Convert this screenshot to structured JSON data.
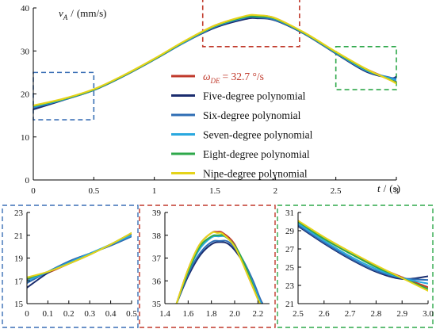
{
  "chart_data": [
    {
      "id": "main",
      "type": "line",
      "ylabel_symbol": "v",
      "ylabel_sub": "A",
      "ylabel_sep": "/",
      "ylabel_unit": "(mm/s)",
      "xlabel_symbol": "t",
      "xlabel_sep": "/",
      "xlabel_unit": "(s)",
      "xlim": [
        0,
        3
      ],
      "ylim": [
        0,
        40
      ],
      "xticks": [
        "0",
        "0.5",
        "1",
        "1.5",
        "2",
        "2.5",
        "3"
      ],
      "yticks": [
        "0",
        "10",
        "20",
        "30",
        "40"
      ],
      "legend_position": "center",
      "series": [
        {
          "name": "ω_DE = 32.7 °/s",
          "color": "#c0392b",
          "x": [
            0,
            0.25,
            0.5,
            0.75,
            1.0,
            1.25,
            1.5,
            1.75,
            1.85,
            2.0,
            2.25,
            2.5,
            2.75,
            2.95,
            3.0
          ],
          "y": [
            17.1,
            18.7,
            21.0,
            24.3,
            28.1,
            32.2,
            35.9,
            38.0,
            38.2,
            37.6,
            34.0,
            29.7,
            25.8,
            23.4,
            22.8
          ]
        },
        {
          "name": "Five-degree polynomial",
          "color": "#1a2c6e",
          "x": [
            0,
            0.25,
            0.5,
            0.75,
            1.0,
            1.25,
            1.5,
            1.75,
            1.85,
            2.0,
            2.25,
            2.5,
            2.75,
            2.95,
            3.0
          ],
          "y": [
            16.4,
            18.6,
            20.9,
            24.2,
            28.0,
            32.0,
            35.4,
            37.4,
            37.6,
            37.1,
            33.8,
            29.4,
            25.2,
            23.7,
            24.0
          ]
        },
        {
          "name": "Six-degree polynomial",
          "color": "#2e6db4",
          "x": [
            0,
            0.25,
            0.5,
            0.75,
            1.0,
            1.25,
            1.5,
            1.75,
            1.85,
            2.0,
            2.25,
            2.5,
            2.75,
            2.95,
            3.0
          ],
          "y": [
            16.8,
            18.7,
            20.9,
            24.2,
            28.0,
            32.0,
            35.6,
            37.7,
            37.8,
            37.2,
            33.9,
            29.5,
            25.4,
            23.8,
            23.6
          ]
        },
        {
          "name": "Seven-degree polynomial",
          "color": "#29a8df",
          "x": [
            0,
            0.25,
            0.5,
            0.75,
            1.0,
            1.25,
            1.5,
            1.75,
            1.85,
            2.0,
            2.25,
            2.5,
            2.75,
            2.95,
            3.0
          ],
          "y": [
            17.0,
            18.7,
            21.0,
            24.3,
            28.1,
            32.1,
            35.7,
            37.8,
            38.0,
            37.4,
            33.9,
            29.6,
            25.5,
            23.6,
            23.2
          ]
        },
        {
          "name": "Eight-degree polynomial",
          "color": "#2ea84a",
          "x": [
            0,
            0.25,
            0.5,
            0.75,
            1.0,
            1.25,
            1.5,
            1.75,
            1.85,
            2.0,
            2.25,
            2.5,
            2.75,
            2.95,
            3.0
          ],
          "y": [
            17.2,
            18.8,
            21.0,
            24.3,
            28.1,
            32.2,
            35.8,
            37.9,
            38.0,
            37.5,
            34.0,
            29.7,
            25.7,
            23.3,
            22.6
          ]
        },
        {
          "name": "Nine-degree polynomial",
          "color": "#e5d31a",
          "x": [
            0,
            0.25,
            0.5,
            0.75,
            1.0,
            1.25,
            1.5,
            1.75,
            1.85,
            2.0,
            2.25,
            2.5,
            2.75,
            2.95,
            3.0
          ],
          "y": [
            17.3,
            18.9,
            21.1,
            24.4,
            28.2,
            32.3,
            35.9,
            38.1,
            38.3,
            37.6,
            34.1,
            29.8,
            25.8,
            23.2,
            22.4
          ]
        }
      ],
      "zoom_boxes": [
        {
          "x": [
            0,
            0.5
          ],
          "y": [
            14,
            25
          ],
          "color": "#3a6fb5"
        },
        {
          "x": [
            1.4,
            2.2
          ],
          "y": [
            31,
            42
          ],
          "color": "#c0392b"
        },
        {
          "x": [
            2.5,
            3.0
          ],
          "y": [
            21,
            31
          ],
          "color": "#2ea84a"
        }
      ]
    },
    {
      "id": "zoom-left",
      "type": "line",
      "xlim": [
        0,
        0.5
      ],
      "ylim": [
        15,
        23
      ],
      "xticks": [
        "0",
        "0.1",
        "0.2",
        "0.3",
        "0.4",
        "0.5"
      ],
      "yticks": [
        "15",
        "17",
        "19",
        "21",
        "23"
      ],
      "border_color": "#3a6fb5",
      "series": [
        {
          "color": "#c0392b",
          "x": [
            0,
            0.1,
            0.2,
            0.3,
            0.4,
            0.5
          ],
          "y": [
            17.1,
            17.7,
            18.5,
            19.3,
            20.2,
            21.1
          ]
        },
        {
          "color": "#1a2c6e",
          "x": [
            0,
            0.1,
            0.2,
            0.3,
            0.4,
            0.5
          ],
          "y": [
            16.4,
            17.7,
            18.7,
            19.4,
            20.1,
            20.9
          ]
        },
        {
          "color": "#2e6db4",
          "x": [
            0,
            0.1,
            0.2,
            0.3,
            0.4,
            0.5
          ],
          "y": [
            16.8,
            17.8,
            18.7,
            19.4,
            20.1,
            20.9
          ]
        },
        {
          "color": "#29a8df",
          "x": [
            0,
            0.1,
            0.2,
            0.3,
            0.4,
            0.5
          ],
          "y": [
            17.0,
            17.8,
            18.6,
            19.4,
            20.2,
            21.0
          ]
        },
        {
          "color": "#2ea84a",
          "x": [
            0,
            0.1,
            0.2,
            0.3,
            0.4,
            0.5
          ],
          "y": [
            17.2,
            17.8,
            18.5,
            19.3,
            20.2,
            21.2
          ]
        },
        {
          "color": "#e5d31a",
          "x": [
            0,
            0.1,
            0.2,
            0.3,
            0.4,
            0.5
          ],
          "y": [
            17.3,
            17.8,
            18.5,
            19.3,
            20.2,
            21.2
          ]
        }
      ]
    },
    {
      "id": "zoom-middle",
      "type": "line",
      "xlim": [
        1.4,
        2.3
      ],
      "ylim": [
        35,
        39
      ],
      "xticks": [
        "1.4",
        "1.6",
        "1.8",
        "2.0",
        "2.2"
      ],
      "yticks": [
        "35",
        "36",
        "37",
        "38",
        "39"
      ],
      "border_color": "#c0392b",
      "series": [
        {
          "color": "#c0392b",
          "x": [
            1.5,
            1.6,
            1.7,
            1.8,
            1.85,
            1.9,
            2.0,
            2.1,
            2.2,
            2.22
          ],
          "y": [
            35.0,
            36.5,
            37.6,
            38.1,
            38.15,
            38.1,
            37.6,
            36.4,
            35.2,
            35.0
          ]
        },
        {
          "color": "#1a2c6e",
          "x": [
            1.5,
            1.6,
            1.7,
            1.8,
            1.87,
            1.95,
            2.05,
            2.15,
            2.22,
            2.24
          ],
          "y": [
            35.0,
            36.2,
            37.1,
            37.6,
            37.7,
            37.6,
            37.0,
            36.0,
            35.2,
            35.0
          ]
        },
        {
          "color": "#2e6db4",
          "x": [
            1.5,
            1.6,
            1.7,
            1.8,
            1.87,
            1.95,
            2.05,
            2.15,
            2.22,
            2.24
          ],
          "y": [
            35.0,
            36.3,
            37.2,
            37.7,
            37.75,
            37.7,
            37.1,
            36.1,
            35.2,
            35.0
          ]
        },
        {
          "color": "#29a8df",
          "x": [
            1.5,
            1.6,
            1.7,
            1.8,
            1.86,
            1.93,
            2.03,
            2.13,
            2.21,
            2.23
          ],
          "y": [
            35.0,
            36.4,
            37.4,
            37.9,
            37.95,
            37.9,
            37.3,
            36.2,
            35.2,
            35.0
          ]
        },
        {
          "color": "#2ea84a",
          "x": [
            1.5,
            1.6,
            1.7,
            1.8,
            1.85,
            1.92,
            2.02,
            2.12,
            2.2,
            2.22
          ],
          "y": [
            35.0,
            36.4,
            37.5,
            37.95,
            38.0,
            37.95,
            37.4,
            36.3,
            35.2,
            35.0
          ]
        },
        {
          "color": "#e5d31a",
          "x": [
            1.5,
            1.6,
            1.7,
            1.8,
            1.85,
            1.9,
            2.0,
            2.1,
            2.2,
            2.22
          ],
          "y": [
            35.0,
            36.5,
            37.6,
            38.1,
            38.1,
            38.05,
            37.5,
            36.4,
            35.2,
            35.0
          ]
        }
      ]
    },
    {
      "id": "zoom-right",
      "type": "line",
      "xlim": [
        2.5,
        3.0
      ],
      "ylim": [
        21,
        31
      ],
      "xticks": [
        "2.5",
        "2.6",
        "2.7",
        "2.8",
        "2.9",
        "3.0"
      ],
      "yticks": [
        "21",
        "23",
        "25",
        "27",
        "29",
        "31"
      ],
      "border_color": "#2ea84a",
      "series": [
        {
          "color": "#c0392b",
          "x": [
            2.5,
            2.6,
            2.7,
            2.8,
            2.9,
            3.0
          ],
          "y": [
            29.9,
            28.1,
            26.5,
            25.1,
            23.9,
            22.8
          ]
        },
        {
          "color": "#1a2c6e",
          "x": [
            2.5,
            2.6,
            2.7,
            2.8,
            2.9,
            3.0
          ],
          "y": [
            29.5,
            27.6,
            25.9,
            24.5,
            23.7,
            24.0
          ]
        },
        {
          "color": "#2e6db4",
          "x": [
            2.5,
            2.6,
            2.7,
            2.8,
            2.9,
            3.0
          ],
          "y": [
            29.6,
            27.7,
            26.0,
            24.6,
            23.8,
            23.6
          ]
        },
        {
          "color": "#29a8df",
          "x": [
            2.5,
            2.6,
            2.7,
            2.8,
            2.9,
            3.0
          ],
          "y": [
            29.8,
            27.9,
            26.2,
            24.8,
            23.8,
            23.2
          ]
        },
        {
          "color": "#2ea84a",
          "x": [
            2.5,
            2.6,
            2.7,
            2.8,
            2.9,
            3.0
          ],
          "y": [
            30.0,
            28.1,
            26.5,
            25.0,
            23.8,
            22.6
          ]
        },
        {
          "color": "#e5d31a",
          "x": [
            2.5,
            2.6,
            2.7,
            2.8,
            2.9,
            3.0
          ],
          "y": [
            30.1,
            28.3,
            26.7,
            25.2,
            23.8,
            22.4
          ]
        }
      ]
    }
  ]
}
